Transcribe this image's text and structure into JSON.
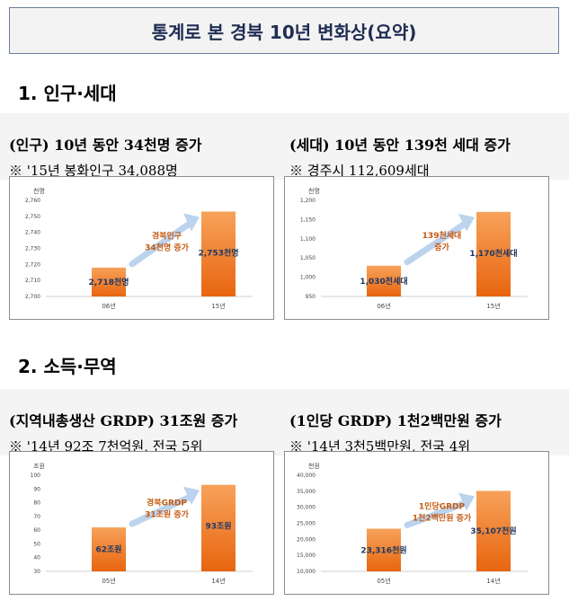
{
  "page_title": "통계로 본 경북 10년 변화상(요약)",
  "sections": [
    {
      "title": "1. 인구·세대",
      "panels": [
        {
          "heading": "(인구) 10년 동안 34천명 증가",
          "note": "※ '15년 봉화인구 34,088명",
          "chart_data": {
            "type": "bar",
            "unit": "천명",
            "categories": [
              "06년",
              "15년"
            ],
            "values": [
              2718,
              2753
            ],
            "value_labels": [
              "2,718천명",
              "2,753천명"
            ],
            "ylim": [
              2700,
              2760
            ],
            "yticks": [
              "2,700",
              "2,710",
              "2,720",
              "2,730",
              "2,740",
              "2,750",
              "2,760"
            ],
            "annotation": [
              "경북인구",
              "34천명 증가"
            ]
          }
        },
        {
          "heading": "(세대) 10년 동안 139천 세대 증가",
          "note": "※ 경주시 112,609세대",
          "chart_data": {
            "type": "bar",
            "unit": "천명",
            "categories": [
              "06년",
              "15년"
            ],
            "values": [
              1030,
              1170
            ],
            "value_labels": [
              "1,030천세대",
              "1,170천세대"
            ],
            "ylim": [
              950,
              1200
            ],
            "yticks": [
              "950",
              "1,000",
              "1,050",
              "1,100",
              "1,150",
              "1,200"
            ],
            "annotation": [
              "139천세대",
              "증가"
            ]
          }
        }
      ]
    },
    {
      "title": "2. 소득·무역",
      "panels": [
        {
          "heading": "(지역내총생산 GRDP) 31조원 증가",
          "note": "※ '14년 92조 7천억원, 전국 5위",
          "chart_data": {
            "type": "bar",
            "unit": "조원",
            "categories": [
              "05년",
              "14년"
            ],
            "values": [
              62,
              93
            ],
            "value_labels": [
              "62조원",
              "93조원"
            ],
            "ylim": [
              30,
              100
            ],
            "yticks": [
              "30",
              "40",
              "50",
              "60",
              "70",
              "80",
              "90",
              "100"
            ],
            "annotation": [
              "경북GRDP",
              "31조원 증가"
            ]
          }
        },
        {
          "heading": "(1인당 GRDP) 1천2백만원 증가",
          "note": "※ '14년 3천5백만원, 전국 4위",
          "chart_data": {
            "type": "bar",
            "unit": "천원",
            "categories": [
              "05년",
              "14년"
            ],
            "values": [
              23316,
              35107
            ],
            "value_labels": [
              "23,316천원",
              "35,107천원"
            ],
            "ylim": [
              10000,
              40000
            ],
            "yticks": [
              "10,000",
              "15,000",
              "20,000",
              "25,000",
              "30,000",
              "35,000",
              "40,000"
            ],
            "annotation": [
              "1인당GRDP",
              "1천2백만원 증가"
            ]
          }
        }
      ]
    }
  ],
  "colors": {
    "bar_top": "#f7a25a",
    "bar_bottom": "#e8650f",
    "arrow": "#bcd3ee",
    "value_text": "#1f3864",
    "annotation_text": "#c55a11"
  }
}
